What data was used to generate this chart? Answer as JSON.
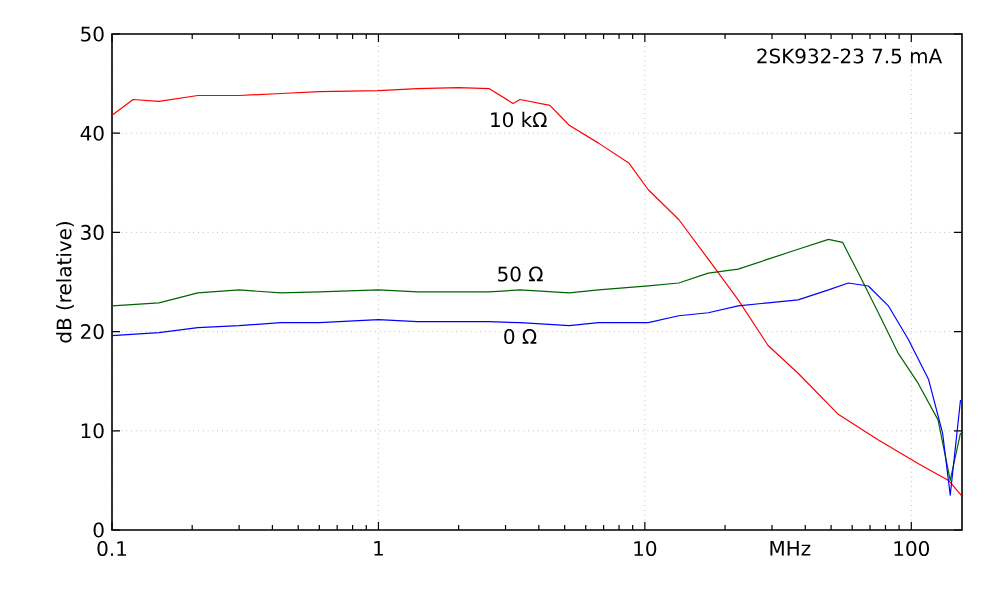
{
  "chart_data": {
    "type": "line",
    "title": "2SK932-23 7.5 mA",
    "ylabel": "dB (relative)",
    "log": "x",
    "grid": true,
    "marker": "none",
    "line_style": "solid",
    "xlim": [
      0.1,
      155
    ],
    "ylim": [
      0,
      50
    ],
    "xticks": [
      0.1,
      1,
      10,
      {
        "value": 35,
        "label": "MHz"
      },
      100
    ],
    "yticks": [
      0,
      10,
      20,
      30,
      40,
      50
    ],
    "series": [
      {
        "name": "10 kΩ",
        "color": "#ff0000",
        "x": [
          0.1,
          0.12,
          0.15,
          0.21,
          0.3,
          0.43,
          0.6,
          1,
          1.4,
          2,
          2.6,
          3.2,
          3.4,
          4.4,
          5.2,
          6.7,
          8.7,
          10.3,
          13.4,
          17.3,
          22.4,
          29,
          37.6,
          53,
          75,
          106,
          138,
          154
        ],
        "values": [
          41.8,
          43.4,
          43.2,
          43.8,
          43.8,
          44,
          44.2,
          44.3,
          44.5,
          44.6,
          44.5,
          43,
          43.4,
          42.8,
          40.8,
          39,
          37,
          34.3,
          31.3,
          27.3,
          23.2,
          18.6,
          15.8,
          11.7,
          9.1,
          6.7,
          5,
          3.5
        ]
      },
      {
        "name": "50 Ω",
        "color": "#006400",
        "x": [
          0.1,
          0.15,
          0.21,
          0.3,
          0.43,
          0.6,
          1,
          1.4,
          2.6,
          3.4,
          5.2,
          6.7,
          10.3,
          13.4,
          17.3,
          22.4,
          29,
          37.6,
          48.9,
          55.2,
          63.3,
          75.2,
          89.4,
          106,
          126,
          140,
          153
        ],
        "values": [
          22.6,
          22.9,
          23.9,
          24.2,
          23.9,
          24,
          24.2,
          24,
          24,
          24.2,
          23.9,
          24.2,
          24.6,
          24.9,
          25.9,
          26.3,
          27.3,
          28.3,
          29.3,
          29,
          25.9,
          21.9,
          17.8,
          14.8,
          11.1,
          5,
          9.8
        ]
      },
      {
        "name": "0 Ω",
        "color": "#0000ff",
        "x": [
          0.1,
          0.15,
          0.21,
          0.3,
          0.43,
          0.6,
          1,
          1.4,
          2.6,
          3.4,
          5.2,
          6.7,
          10.3,
          13.4,
          17.3,
          22.4,
          29,
          37.6,
          48.9,
          58,
          69,
          82,
          97.5,
          116,
          131,
          140,
          153
        ],
        "values": [
          19.6,
          19.9,
          20.4,
          20.6,
          20.9,
          20.9,
          21.2,
          21,
          21,
          20.9,
          20.6,
          20.9,
          20.9,
          21.6,
          21.9,
          22.6,
          22.9,
          23.2,
          24.2,
          24.9,
          24.6,
          22.6,
          19.2,
          15.2,
          9.8,
          3.5,
          13.1
        ]
      }
    ]
  }
}
